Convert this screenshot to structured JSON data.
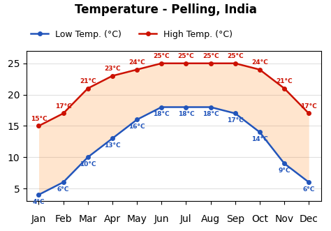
{
  "chart_data": {
    "type": "line",
    "title": "Temperature - Pelling, India",
    "categories": [
      "Jan",
      "Feb",
      "Mar",
      "Apr",
      "May",
      "Jun",
      "Jul",
      "Aug",
      "Sep",
      "Oct",
      "Nov",
      "Dec"
    ],
    "series": [
      {
        "name": "Low Temp. (°C)",
        "color": "#2255bb",
        "marker": "o",
        "values": [
          4,
          6,
          10,
          13,
          16,
          18,
          18,
          18,
          17,
          14,
          9,
          6
        ],
        "value_labels": [
          "4°C",
          "6°C",
          "10°C",
          "13°C",
          "16°C",
          "18°C",
          "18°C",
          "18°C",
          "17°C",
          "14°C",
          "9°C",
          "6°C"
        ]
      },
      {
        "name": "High Temp. (°C)",
        "color": "#cc1100",
        "marker": "o",
        "values": [
          15,
          17,
          21,
          23,
          24,
          25,
          25,
          25,
          25,
          24,
          21,
          17
        ],
        "value_labels": [
          "15°C",
          "17°C",
          "21°C",
          "23°C",
          "24°C",
          "25°C",
          "25°C",
          "25°C",
          "25°C",
          "24°C",
          "21°C",
          "17°C"
        ]
      }
    ],
    "ylim": [
      3,
      27
    ],
    "yticks": [
      5,
      10,
      15,
      20,
      25
    ],
    "grid": true,
    "legend": "upper left",
    "data_labels": true
  }
}
